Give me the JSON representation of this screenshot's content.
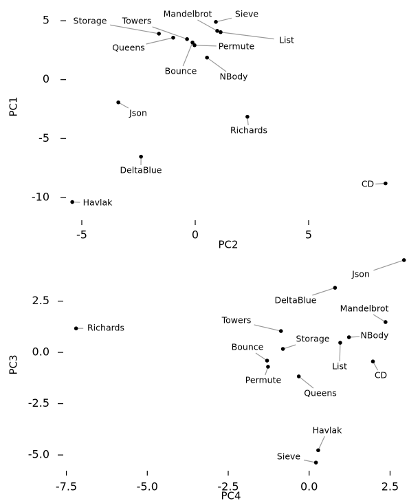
{
  "chart_data": [
    {
      "type": "scatter",
      "xlabel": "PC2",
      "ylabel": "PC1",
      "color": "#000000",
      "xlim": [
        -6,
        9
      ],
      "ylim": [
        -11,
        6
      ],
      "xticks": [
        -5,
        0,
        5
      ],
      "yticks": [
        -10,
        -5,
        0,
        5
      ],
      "labels": [
        "Storage",
        "Queens",
        "Towers",
        "Bounce",
        "Permute",
        "Sieve",
        "Mandelbrot",
        "List",
        "NBody",
        "Json",
        "Richards",
        "DeltaBlue",
        "CD",
        "Havlak"
      ],
      "x": [
        -1.6,
        -0.97,
        -0.36,
        -0.12,
        -0.03,
        0.91,
        0.97,
        1.12,
        0.52,
        -3.39,
        2.3,
        -2.39,
        8.39,
        -5.42
      ],
      "values": [
        3.9,
        3.56,
        3.44,
        3.15,
        2.92,
        4.9,
        4.14,
        4.03,
        1.87,
        -1.93,
        -3.15,
        -6.54,
        -8.81,
        -10.39
      ]
    },
    {
      "type": "scatter",
      "xlabel": "PC4",
      "ylabel": "PC3",
      "color": "#000000",
      "xlim": [
        -8,
        3
      ],
      "ylim": [
        -5.6,
        4.8
      ],
      "xticks": [
        -7.5,
        {
          "value": -5,
          "label": "-5.0"
        },
        -2.5,
        {
          "value": 0,
          "label": "0.0"
        },
        2.5
      ],
      "yticks": [
        2.5,
        {
          "value": 0,
          "label": "0.0"
        },
        -2.5,
        {
          "value": -5,
          "label": "-5.0"
        }
      ],
      "labels": [
        "Json",
        "DeltaBlue",
        "Richards",
        "Mandelbrot",
        "NBody",
        "List",
        "Towers",
        "Storage",
        "Bounce",
        "Permute",
        "Queens",
        "CD",
        "Havlak",
        "Sieve"
      ],
      "x": [
        2.93,
        0.8,
        -7.2,
        2.36,
        1.23,
        0.96,
        -0.87,
        -0.81,
        -1.3,
        -1.27,
        -0.32,
        1.97,
        0.28,
        0.21
      ],
      "values": [
        4.5,
        3.15,
        1.17,
        1.48,
        0.74,
        0.47,
        1.04,
        0.17,
        -0.4,
        -0.7,
        -1.17,
        -0.44,
        -4.77,
        -5.37
      ]
    }
  ]
}
